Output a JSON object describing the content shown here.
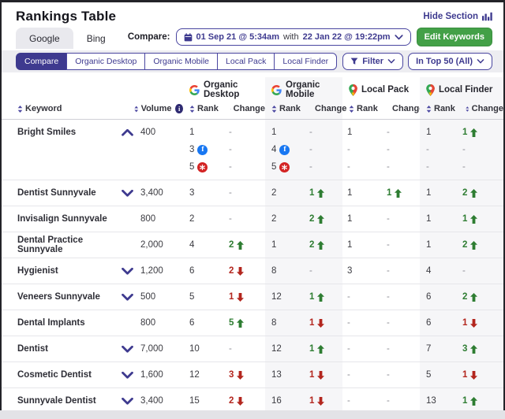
{
  "header": {
    "title": "Rankings Table",
    "hide_section_label": "Hide Section",
    "hide_section_icon": "bar-chart-icon"
  },
  "tabs": [
    {
      "label": "Google",
      "active": true
    },
    {
      "label": "Bing",
      "active": false
    }
  ],
  "compare": {
    "label": "Compare:",
    "icon": "calendar-icon",
    "date_from": "01 Sep 21 @ 5:34am",
    "joiner": "with",
    "date_to": "22 Jan 22 @ 19:22pm",
    "chevron": "chevron-down-icon"
  },
  "edit_keywords_label": "Edit Keywords",
  "view_pills": [
    {
      "label": "Compare",
      "active": true
    },
    {
      "label": "Organic Desktop",
      "active": false
    },
    {
      "label": "Organic Mobile",
      "active": false
    },
    {
      "label": "Local Pack",
      "active": false
    },
    {
      "label": "Local Finder",
      "active": false
    }
  ],
  "filter_button": {
    "label": "Filter",
    "icon": "funnel-icon"
  },
  "top_filter_button": {
    "label": "In Top 50 (All)"
  },
  "colors": {
    "accent_indigo": "#3e3a8f",
    "green_up": "#2e7d32",
    "red_down": "#b3261e",
    "button_green": "#43a047",
    "shaded_column": "#f6f6f8"
  },
  "table": {
    "columns": {
      "keyword": "Keyword",
      "volume": "Volume",
      "rank": "Rank",
      "change": "Change"
    },
    "groups": [
      {
        "label": "Organic Desktop",
        "icon": "google-icon"
      },
      {
        "label": "Organic Mobile",
        "icon": "google-icon"
      },
      {
        "label": "Local Pack",
        "icon": "map-pin-icon"
      },
      {
        "label": "Local Finder",
        "icon": "map-pin-icon"
      }
    ],
    "rows": [
      {
        "keyword": "Bright Smiles",
        "expander": "collapse",
        "volume": "400",
        "od": {
          "rank": [
            {
              "t": "1"
            },
            {
              "t": "3",
              "icon": "facebook"
            },
            {
              "t": "5",
              "icon": "yelp"
            }
          ],
          "change": [
            {
              "t": "-"
            },
            {
              "t": "-"
            },
            {
              "t": "-"
            }
          ]
        },
        "om": {
          "rank": [
            {
              "t": "1"
            },
            {
              "t": "4",
              "icon": "facebook"
            },
            {
              "t": "5",
              "icon": "yelp"
            }
          ],
          "change": [
            {
              "t": "-"
            },
            {
              "t": "-"
            },
            {
              "t": "-"
            }
          ]
        },
        "lp": {
          "rank": [
            {
              "t": "1"
            },
            {
              "t": "-"
            },
            {
              "t": "-"
            }
          ],
          "change": [
            {
              "t": "-"
            },
            {
              "t": "-"
            },
            {
              "t": "-"
            }
          ]
        },
        "lf": {
          "rank": [
            {
              "t": "1"
            },
            {
              "t": "-"
            },
            {
              "t": "-"
            }
          ],
          "change": [
            {
              "t": "1",
              "dir": "up"
            },
            {
              "t": "-"
            },
            {
              "t": "-"
            }
          ]
        }
      },
      {
        "keyword": "Dentist Sunnyvale",
        "expander": "expand",
        "volume": "3,400",
        "od": {
          "rank": [
            {
              "t": "3"
            }
          ],
          "change": [
            {
              "t": "-"
            }
          ]
        },
        "om": {
          "rank": [
            {
              "t": "2"
            }
          ],
          "change": [
            {
              "t": "1",
              "dir": "up"
            }
          ]
        },
        "lp": {
          "rank": [
            {
              "t": "1"
            }
          ],
          "change": [
            {
              "t": "1",
              "dir": "up"
            }
          ]
        },
        "lf": {
          "rank": [
            {
              "t": "1"
            }
          ],
          "change": [
            {
              "t": "2",
              "dir": "up"
            }
          ]
        }
      },
      {
        "keyword": "Invisalign Sunnyvale",
        "expander": null,
        "volume": "800",
        "od": {
          "rank": [
            {
              "t": "2"
            }
          ],
          "change": [
            {
              "t": "-"
            }
          ]
        },
        "om": {
          "rank": [
            {
              "t": "2"
            }
          ],
          "change": [
            {
              "t": "2",
              "dir": "up"
            }
          ]
        },
        "lp": {
          "rank": [
            {
              "t": "1"
            }
          ],
          "change": [
            {
              "t": "-"
            }
          ]
        },
        "lf": {
          "rank": [
            {
              "t": "1"
            }
          ],
          "change": [
            {
              "t": "1",
              "dir": "up"
            }
          ]
        }
      },
      {
        "keyword": "Dental Practice Sunnyvale",
        "expander": null,
        "volume": "2,000",
        "od": {
          "rank": [
            {
              "t": "4"
            }
          ],
          "change": [
            {
              "t": "2",
              "dir": "up"
            }
          ]
        },
        "om": {
          "rank": [
            {
              "t": "1"
            }
          ],
          "change": [
            {
              "t": "2",
              "dir": "up"
            }
          ]
        },
        "lp": {
          "rank": [
            {
              "t": "1"
            }
          ],
          "change": [
            {
              "t": "-"
            }
          ]
        },
        "lf": {
          "rank": [
            {
              "t": "1"
            }
          ],
          "change": [
            {
              "t": "2",
              "dir": "up"
            }
          ]
        }
      },
      {
        "keyword": "Hygienist",
        "expander": "expand",
        "volume": "1,200",
        "od": {
          "rank": [
            {
              "t": "6"
            }
          ],
          "change": [
            {
              "t": "2",
              "dir": "down"
            }
          ]
        },
        "om": {
          "rank": [
            {
              "t": "8"
            }
          ],
          "change": [
            {
              "t": "-"
            }
          ]
        },
        "lp": {
          "rank": [
            {
              "t": "3"
            }
          ],
          "change": [
            {
              "t": "-"
            }
          ]
        },
        "lf": {
          "rank": [
            {
              "t": "4"
            }
          ],
          "change": [
            {
              "t": "-"
            }
          ]
        }
      },
      {
        "keyword": "Veneers Sunnyvale",
        "expander": "expand",
        "volume": "500",
        "od": {
          "rank": [
            {
              "t": "5"
            }
          ],
          "change": [
            {
              "t": "1",
              "dir": "down"
            }
          ]
        },
        "om": {
          "rank": [
            {
              "t": "12"
            }
          ],
          "change": [
            {
              "t": "1",
              "dir": "up"
            }
          ]
        },
        "lp": {
          "rank": [
            {
              "t": "-"
            }
          ],
          "change": [
            {
              "t": "-"
            }
          ]
        },
        "lf": {
          "rank": [
            {
              "t": "6"
            }
          ],
          "change": [
            {
              "t": "2",
              "dir": "up"
            }
          ]
        }
      },
      {
        "keyword": "Dental Implants",
        "expander": null,
        "volume": "800",
        "od": {
          "rank": [
            {
              "t": "6"
            }
          ],
          "change": [
            {
              "t": "5",
              "dir": "up"
            }
          ]
        },
        "om": {
          "rank": [
            {
              "t": "8"
            }
          ],
          "change": [
            {
              "t": "1",
              "dir": "down"
            }
          ]
        },
        "lp": {
          "rank": [
            {
              "t": "-"
            }
          ],
          "change": [
            {
              "t": "-"
            }
          ]
        },
        "lf": {
          "rank": [
            {
              "t": "6"
            }
          ],
          "change": [
            {
              "t": "1",
              "dir": "down"
            }
          ]
        }
      },
      {
        "keyword": "Dentist",
        "expander": "expand",
        "volume": "7,000",
        "od": {
          "rank": [
            {
              "t": "10"
            }
          ],
          "change": [
            {
              "t": "-"
            }
          ]
        },
        "om": {
          "rank": [
            {
              "t": "12"
            }
          ],
          "change": [
            {
              "t": "1",
              "dir": "up"
            }
          ]
        },
        "lp": {
          "rank": [
            {
              "t": "-"
            }
          ],
          "change": [
            {
              "t": "-"
            }
          ]
        },
        "lf": {
          "rank": [
            {
              "t": "7"
            }
          ],
          "change": [
            {
              "t": "3",
              "dir": "up"
            }
          ]
        }
      },
      {
        "keyword": "Cosmetic Dentist",
        "expander": "expand",
        "volume": "1,600",
        "od": {
          "rank": [
            {
              "t": "12"
            }
          ],
          "change": [
            {
              "t": "3",
              "dir": "down"
            }
          ]
        },
        "om": {
          "rank": [
            {
              "t": "13"
            }
          ],
          "change": [
            {
              "t": "1",
              "dir": "down"
            }
          ]
        },
        "lp": {
          "rank": [
            {
              "t": "-"
            }
          ],
          "change": [
            {
              "t": "-"
            }
          ]
        },
        "lf": {
          "rank": [
            {
              "t": "5"
            }
          ],
          "change": [
            {
              "t": "1",
              "dir": "down"
            }
          ]
        }
      },
      {
        "keyword": "Sunnyvale Dentist",
        "expander": "expand",
        "volume": "3,400",
        "od": {
          "rank": [
            {
              "t": "15"
            }
          ],
          "change": [
            {
              "t": "2",
              "dir": "down"
            }
          ]
        },
        "om": {
          "rank": [
            {
              "t": "16"
            }
          ],
          "change": [
            {
              "t": "1",
              "dir": "down"
            }
          ]
        },
        "lp": {
          "rank": [
            {
              "t": "-"
            }
          ],
          "change": [
            {
              "t": "-"
            }
          ]
        },
        "lf": {
          "rank": [
            {
              "t": "13"
            }
          ],
          "change": [
            {
              "t": "1",
              "dir": "up"
            }
          ]
        }
      }
    ]
  }
}
